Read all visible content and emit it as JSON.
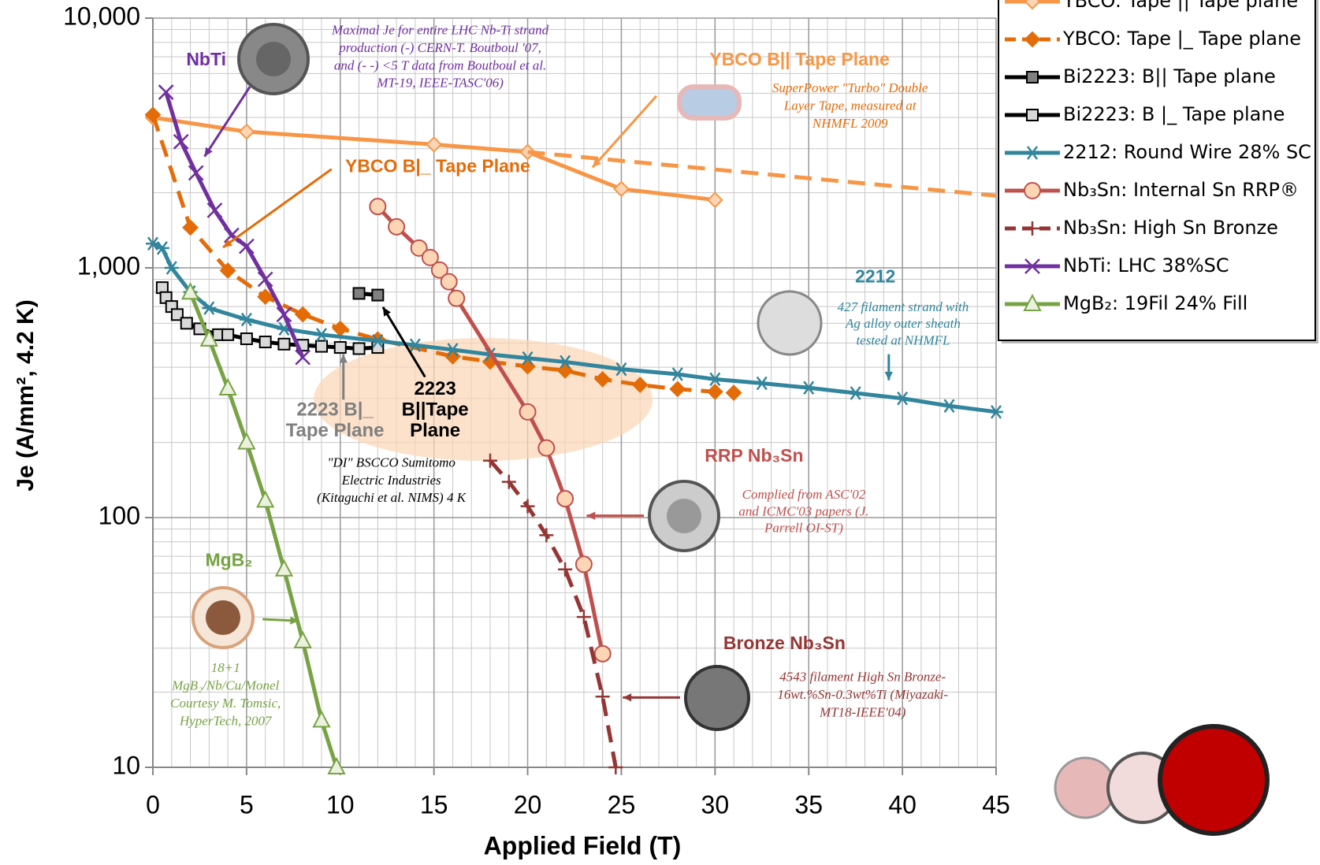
{
  "chart_data": {
    "type": "line",
    "log_y": true,
    "grid": true,
    "legend_position": "top-right",
    "xlabel": "Applied Field (T)",
    "ylabel": "Je (A/mm², 4.2 K)",
    "xlim": [
      0,
      45
    ],
    "xticks": [
      0,
      5,
      10,
      15,
      20,
      25,
      30,
      35,
      40,
      45
    ],
    "ylim": [
      10,
      10000
    ],
    "yticks": [
      10,
      100,
      {
        "value": 1000,
        "label": "1,000"
      },
      {
        "value": 10000,
        "label": "10,000"
      }
    ],
    "series": [
      {
        "name": "YBCO: Tape || Tape plane",
        "color": "#f79646",
        "marker": "diamond",
        "marker_fill": "#fbd5b5",
        "dash": false,
        "x": [
          0,
          5,
          15,
          20,
          25,
          30
        ],
        "values": [
          4000,
          3510,
          3120,
          2910,
          2070,
          1870
        ]
      },
      {
        "color": "#f79646",
        "dash": true,
        "x": [
          20,
          45
        ],
        "values": [
          2910,
          1945
        ]
      },
      {
        "name": "YBCO: Tape |_ Tape plane",
        "color": "#e36c09",
        "marker": "diamond",
        "marker_fill": "#e36c09",
        "dash": true,
        "x": [
          0,
          2,
          4,
          6,
          8,
          10,
          12,
          16,
          18,
          20,
          22,
          24,
          26,
          28,
          30,
          31
        ],
        "values": [
          4100,
          1450,
          975,
          766,
          651,
          571,
          517,
          442,
          421,
          403,
          388,
          358,
          340,
          327,
          319,
          316
        ]
      },
      {
        "name": "Bi2223: B|| Tape plane",
        "color": "#000000",
        "marker": "square",
        "marker_fill": "#808080",
        "dash": false,
        "x": [
          11,
          12
        ],
        "values": [
          790,
          778
        ]
      },
      {
        "name": "Bi2223: B |_ Tape plane",
        "color": "#000000",
        "marker": "square",
        "marker_fill": "#d9d9d9",
        "dash": false,
        "x": [
          0.5,
          0.7,
          1,
          1.3,
          1.8,
          2.5,
          3.5,
          4,
          5,
          6,
          7,
          8,
          9,
          10,
          11,
          12
        ],
        "values": [
          833,
          760,
          700,
          650,
          600,
          570,
          540,
          540,
          520,
          505,
          495,
          490,
          485,
          480,
          475,
          480
        ]
      },
      {
        "name": "2212: Round Wire 28% SC",
        "color": "#31859c",
        "marker": "asterisk",
        "dash": false,
        "x": [
          0,
          0.5,
          1,
          2,
          3,
          5,
          7,
          9,
          12,
          14,
          16,
          18,
          20,
          22,
          25,
          28,
          30,
          32.5,
          35,
          37.5,
          40,
          42.5,
          45
        ],
        "values": [
          1250,
          1200,
          1000,
          800,
          690,
          621,
          570,
          540,
          510,
          490,
          470,
          450,
          435,
          420,
          393,
          375,
          358,
          345,
          331,
          315,
          300,
          280,
          265
        ]
      },
      {
        "name": "Nb₃Sn: Internal Sn RRP®",
        "color": "#c0504d",
        "marker": "circle",
        "marker_fill": "#fcd5b4",
        "dash": false,
        "x": [
          12,
          13,
          14.2,
          14.8,
          15.3,
          15.8,
          16.2,
          20,
          21,
          22,
          23,
          24
        ],
        "values": [
          1760,
          1460,
          1200,
          1100,
          980,
          880,
          755,
          265,
          190,
          119,
          65,
          28.5
        ]
      },
      {
        "name": "Nb₃Sn: High Sn Bronze",
        "color": "#943634",
        "marker": "plus",
        "dash": true,
        "x": [
          18,
          19,
          20,
          21,
          22,
          23,
          24,
          24.7
        ],
        "values": [
          169,
          139,
          111,
          85,
          62,
          40,
          19.2,
          10
        ]
      },
      {
        "name": "NbTi: LHC 38%SC",
        "color": "#7030a0",
        "marker": "cross",
        "dash": false,
        "x": [
          0.7,
          1.5,
          2.3,
          3.3,
          4.2,
          5,
          6,
          7,
          8
        ],
        "values": [
          5050,
          3200,
          2400,
          1700,
          1350,
          1220,
          900,
          650,
          438
        ]
      },
      {
        "name": "MgB₂: 19Fil 24% Fill",
        "color": "#77a344",
        "marker": "triangle",
        "marker_fill": "#ebf1de",
        "dash": false,
        "x": [
          2,
          3,
          4,
          5,
          6,
          7,
          8,
          9,
          9.8
        ],
        "values": [
          797,
          517,
          329,
          200,
          117,
          62,
          32,
          15.4,
          10
        ]
      }
    ],
    "annotations": [
      {
        "lines": [
          "Maximal Je for entire LHC Nb-Ti strand",
          "production (-) CERN-T. Boutboul '07,",
          "and (- -) <5 T data from Boutboul et al.",
          "MT-19, IEEE-TASC'06)"
        ],
        "color": "#7030a0",
        "style": "italic"
      },
      {
        "lines": [
          "NbTi"
        ],
        "color": "#7030a0",
        "style": "bold"
      },
      {
        "lines": [
          "YBCO B|| Tape Plane"
        ],
        "color": "#f79646",
        "style": "bold"
      },
      {
        "lines": [
          "SuperPower \"Turbo\" Double",
          "Layer Tape, measured at",
          "NHMFL 2009"
        ],
        "color": "#e36c09",
        "style": "italic"
      },
      {
        "lines": [
          "YBCO B|_ Tape Plane"
        ],
        "color": "#e36c09",
        "style": "bold"
      },
      {
        "lines": [
          "2212"
        ],
        "color": "#31859c",
        "style": "bold"
      },
      {
        "lines": [
          "427 filament strand with",
          "Ag alloy outer sheath",
          "tested at NHMFL"
        ],
        "color": "#31859c",
        "style": "italic"
      },
      {
        "lines": [
          "2223",
          "B||Tape",
          "Plane"
        ],
        "color": "#000000",
        "style": "bold"
      },
      {
        "lines": [
          "2223 B|_",
          "Tape Plane"
        ],
        "color": "#808080",
        "style": "bold"
      },
      {
        "lines": [
          "\"DI\" BSCCO Sumitomo",
          "Electric Industries",
          "(Kitaguchi et al. NIMS) 4 K"
        ],
        "color": "#000000",
        "style": "italic"
      },
      {
        "lines": [
          "RRP Nb₃Sn"
        ],
        "color": "#c0504d",
        "style": "bold"
      },
      {
        "lines": [
          "Complied from ASC'02",
          "and ICMC'03 papers (J.",
          "Parrell OI-ST)"
        ],
        "color": "#c0504d",
        "style": "italic"
      },
      {
        "lines": [
          "MgB₂"
        ],
        "color": "#77a344",
        "style": "bold"
      },
      {
        "lines": [
          "18+1",
          "MgB₂/Nb/Cu/Monel",
          "Courtesy M. Tomsic,",
          "HyperTech, 2007"
        ],
        "color": "#77a344",
        "style": "italic"
      },
      {
        "lines": [
          "Bronze Nb₃Sn"
        ],
        "color": "#943634",
        "style": "bold"
      },
      {
        "lines": [
          "4543 filament High Sn Bronze-",
          "16wt.%Sn-0.3wt%Ti (Miyazaki-",
          "MT18-IEEE'04)"
        ],
        "color": "#943634",
        "style": "italic"
      }
    ]
  }
}
